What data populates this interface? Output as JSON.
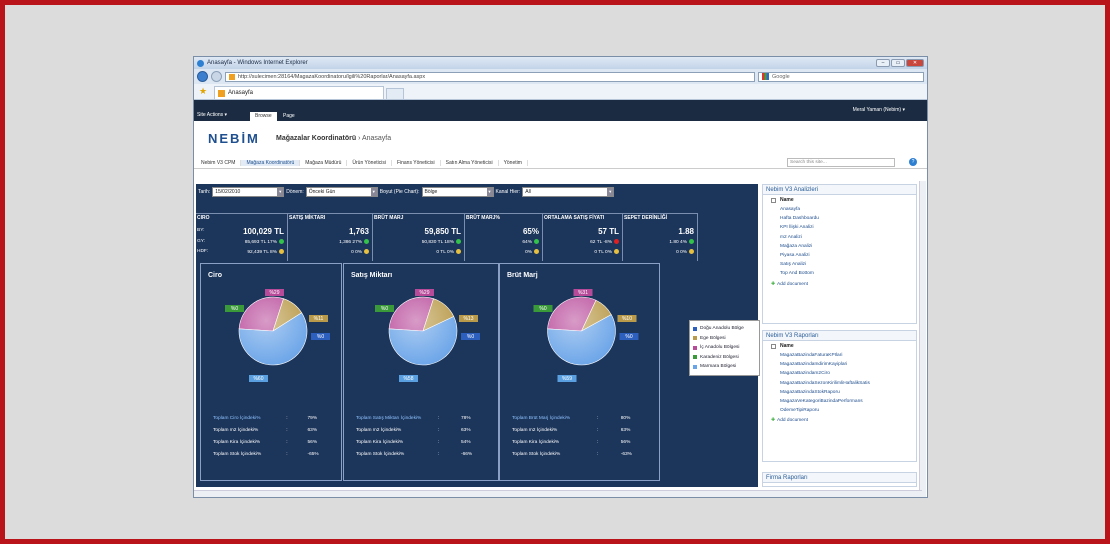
{
  "window": {
    "title": "Anasayfa - Windows Internet Explorer",
    "url": "http://sulecimen:28164/MagazaKoordinatoru/lgili%20Raporlar/Anasayfa.aspx",
    "search_placeholder": "Google",
    "tab_title": "Anasayfa"
  },
  "ribbon": {
    "site_actions": "Site Actions ▾",
    "tab_browse": "Browse",
    "tab_page": "Page",
    "user": "Meral Yaman (Nebim) ▾"
  },
  "header": {
    "logo": "NEBİM",
    "site_title": "Mağazalar Koordinatörü",
    "crumb": " › Anasayfa"
  },
  "topnav": {
    "items": [
      "Nebim V3 CPM",
      "Mağaza Koordinatörü",
      "Mağaza Müdürü",
      "Ürün Yöneticisi",
      "Finans Yöneticisi",
      "Satın Alma Yöneticisi",
      "Yönetim"
    ],
    "search_placeholder": "Search this site...",
    "help": "?"
  },
  "filters": {
    "date_label": "Tarih:",
    "date_value": "15/02/2010",
    "period_label": "Dönem:",
    "period_value": "Önceki Gün",
    "dim_label": "Boyut (Pie Chart):",
    "dim_value": "Bölge",
    "channel_label": "Kanal Hier:",
    "channel_value": "All"
  },
  "kpi": {
    "row_labels": [
      "BY:",
      "GY:",
      "HDF:"
    ],
    "ciro": {
      "title": "CIRO",
      "main": "100,029 TL",
      "r1": "85,693 TL   17%",
      "r2": "92,439 TL   8%"
    },
    "satis": {
      "title": "SATIŞ MİKTARI",
      "main": "1,763",
      "r1": "1,386   27%",
      "r2": "0   0%"
    },
    "brut": {
      "title": "BRÜT MARJ",
      "main": "59,850 TL",
      "r1": "50,830 TL   18%",
      "r2": "0 TL   0%"
    },
    "brutpct": {
      "title": "BRÜT MARJ%",
      "main": "65%",
      "r1": "64%",
      "r2": "0%"
    },
    "fiyat": {
      "title": "ORTALAMA SATIŞ FİYATI",
      "main": "57 TL",
      "r1": "62 TL   -8%",
      "r2": "0 TL   0%"
    },
    "sepet": {
      "title": "SEPET DERİNLİĞİ",
      "main": "1.88",
      "r1": "1.80   4%",
      "r2": "0   0%"
    }
  },
  "colors": {
    "green": "#33c24a",
    "yellow": "#e8c040",
    "red": "#e02020"
  },
  "panels": [
    {
      "title": "Ciro",
      "labels": {
        "top": "%29",
        "left": "%0",
        "right1": "%11",
        "right2": "%0",
        "bottom": "%60"
      },
      "rows": [
        [
          "Toplam Ciro İçindeki%",
          "79%"
        ],
        [
          "Toplam m2 İçindeki%",
          "63%"
        ],
        [
          "Toplam Kira İçindeki%",
          "56%"
        ],
        [
          "Toplam Stok İçindeki%",
          "-65%"
        ]
      ]
    },
    {
      "title": "Satış Miktarı",
      "labels": {
        "top": "%29",
        "left": "%0",
        "right1": "%13",
        "right2": "%0",
        "bottom": "%58"
      },
      "rows": [
        [
          "Toplam Satış Miktarı İçindeki%",
          "78%"
        ],
        [
          "Toplam m2 İçindeki%",
          "63%"
        ],
        [
          "Toplam Kira İçindeki%",
          "54%"
        ],
        [
          "Toplam Stok İçindeki%",
          "-66%"
        ]
      ]
    },
    {
      "title": "Brüt Marj",
      "labels": {
        "top": "%31",
        "left": "%0",
        "right1": "%10",
        "right2": "%0",
        "bottom": "%59"
      },
      "rows": [
        [
          "Toplam Brüt Marj İçindeki%",
          "80%"
        ],
        [
          "Toplam m2 İçindeki%",
          "63%"
        ],
        [
          "Toplam Kira İçindeki%",
          "56%"
        ],
        [
          "Toplam Stok İçindeki%",
          "-63%"
        ]
      ]
    }
  ],
  "legend": [
    "Doğu Anadolu Bölge",
    "Ege Bölgesi",
    "İç Anadolu Bölgesi",
    "Karadeniz Bölgesi",
    "Marmara Bölgesi"
  ],
  "chart_data": [
    {
      "type": "pie",
      "title": "Ciro",
      "categories": [
        "Doğu Anadolu Bölge",
        "Ege Bölgesi",
        "İç Anadolu Bölgesi",
        "Karadeniz Bölgesi",
        "Marmara Bölgesi"
      ],
      "values": [
        0,
        11,
        29,
        0,
        60
      ]
    },
    {
      "type": "pie",
      "title": "Satış Miktarı",
      "categories": [
        "Doğu Anadolu Bölge",
        "Ege Bölgesi",
        "İç Anadolu Bölgesi",
        "Karadeniz Bölgesi",
        "Marmara Bölgesi"
      ],
      "values": [
        0,
        13,
        29,
        0,
        58
      ]
    },
    {
      "type": "pie",
      "title": "Brüt Marj",
      "categories": [
        "Doğu Anadolu Bölge",
        "Ege Bölgesi",
        "İç Anadolu Bölgesi",
        "Karadeniz Bölgesi",
        "Marmara Bölgesi"
      ],
      "values": [
        0,
        10,
        31,
        0,
        59
      ]
    }
  ],
  "side": {
    "box1": {
      "title": "Nebim V3 Analizleri",
      "name": "Name",
      "items": [
        "Anasayfa",
        "Hafta Dashboardu",
        "KPI İlişki Analizi",
        "m2 Analizi",
        "Mağaza Analizi",
        "Piyasa Analizi",
        "Satış Analizi",
        "Top And Bottom"
      ],
      "add": "Add document"
    },
    "box2": {
      "title": "Nebim V3 Raporları",
      "name": "Name",
      "items": [
        "MagazaBazindaFaturaKPIlari",
        "MagazaBazindaIndirimKayiplari",
        "MagazaBazindam2Ciro",
        "MagazaBazindaSezonKirilimliHaftalikSatis",
        "MagazaBazindaStokRaporu",
        "MagazaVeKategoriBazindaPerformans",
        "OdemeTipiRaporu"
      ],
      "add": "Add document"
    },
    "box3": {
      "title": "Firma Raporları"
    }
  }
}
